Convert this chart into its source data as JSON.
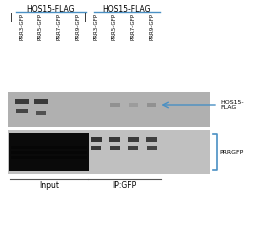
{
  "white": "#ffffff",
  "black": "#000000",
  "blue": "#4a90c4",
  "gray_dark": "#555555",
  "group1_label": "HOS15-FLAG",
  "group2_label": "HOS15-FLAG",
  "col_labels": [
    "PRR3-GFP",
    "PRR5-GFP",
    "PRR7-GFP",
    "PRR9-GFP",
    "PRR3-GFP",
    "PRR5-GFP",
    "PRR7-GFP",
    "PRR9-GFP"
  ],
  "hos15_arrow_label": "HOS15-\nFLAG",
  "prr_bracket_label": "PRRGFP",
  "input_label": "Input",
  "ip_label": "IP:GFP"
}
